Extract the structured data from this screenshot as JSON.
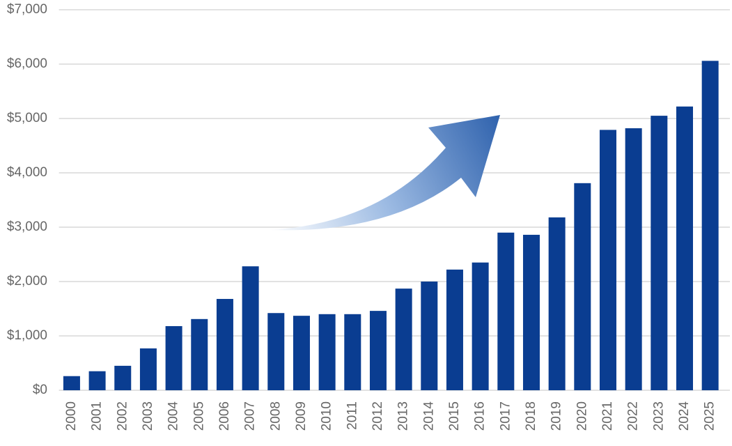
{
  "chart_data": {
    "type": "bar",
    "categories": [
      "2000",
      "2001",
      "2002",
      "2003",
      "2004",
      "2005",
      "2006",
      "2007",
      "2008",
      "2009",
      "2010",
      "2011",
      "2012",
      "2013",
      "2014",
      "2015",
      "2016",
      "2017",
      "2018",
      "2019",
      "2020",
      "2021",
      "2022",
      "2023",
      "2024",
      "2025"
    ],
    "values": [
      260,
      350,
      450,
      770,
      1180,
      1310,
      1680,
      2280,
      1420,
      1370,
      1400,
      1400,
      1460,
      1870,
      2000,
      2220,
      2350,
      2900,
      2860,
      3180,
      3810,
      4790,
      4820,
      5050,
      5220,
      6060
    ],
    "color": "#0a3d91",
    "ylim": [
      0,
      7000
    ],
    "yticks": [
      {
        "value": 0,
        "label": "$0"
      },
      {
        "value": 1000,
        "label": "$1,000"
      },
      {
        "value": 2000,
        "label": "$2,000"
      },
      {
        "value": 3000,
        "label": "$3,000"
      },
      {
        "value": 4000,
        "label": "$4,000"
      },
      {
        "value": 5000,
        "label": "$5,000"
      },
      {
        "value": 6000,
        "label": "$6,000"
      },
      {
        "value": 7000,
        "label": "$7,000"
      }
    ],
    "grid": true
  }
}
